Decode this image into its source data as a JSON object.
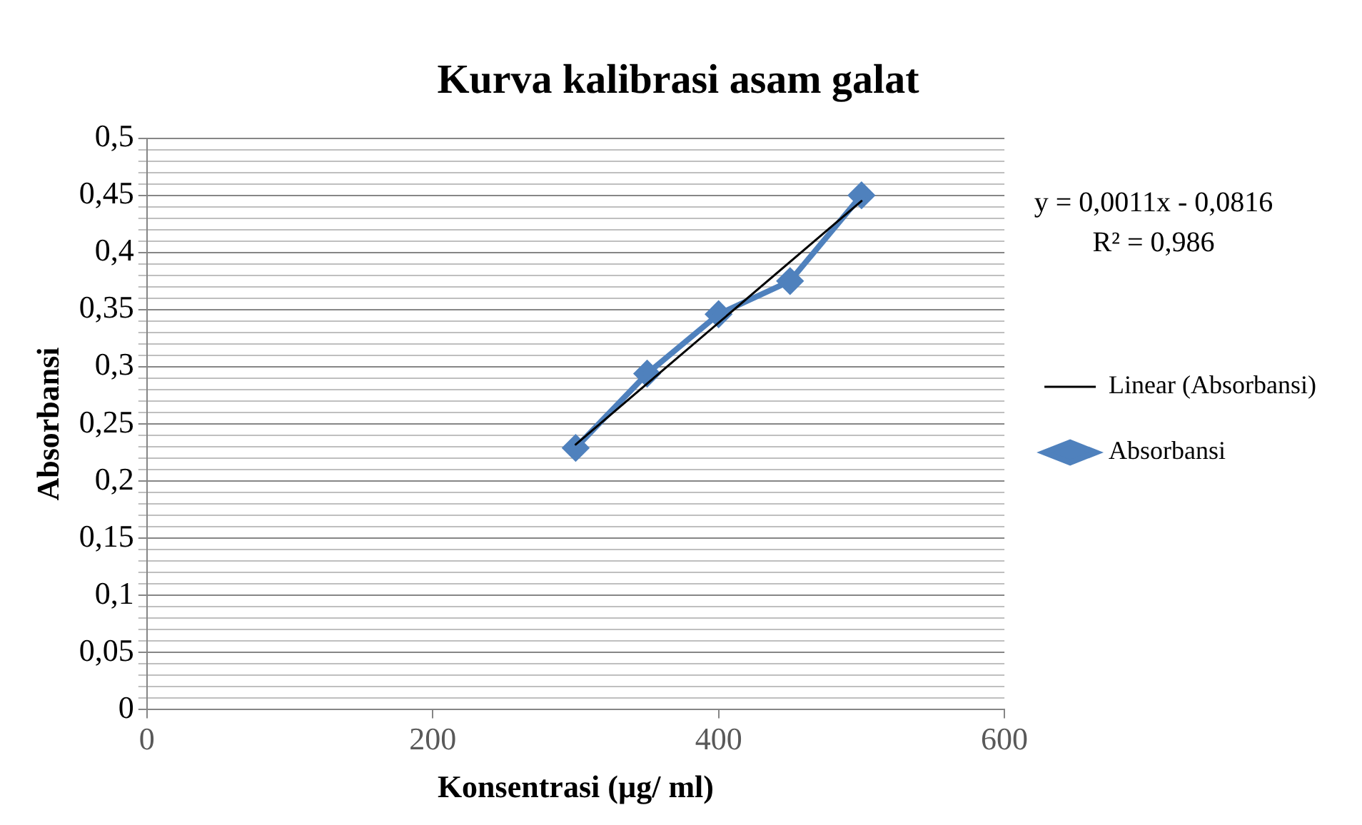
{
  "chart_data": {
    "type": "line",
    "title": "Kurva kalibrasi asam galat",
    "xlabel": "Konsentrasi (µg/ ml)",
    "ylabel": "Absorbansi",
    "annotations": [
      "y = 0,0011x - 0,0816",
      "R² = 0,986"
    ],
    "series": [
      {
        "name": "Absorbansi",
        "color": "#4f81bd",
        "x": [
          300,
          350,
          400,
          450,
          500
        ],
        "values": [
          0.229,
          0.294,
          0.346,
          0.375,
          0.45
        ],
        "marker": "diamond"
      },
      {
        "name": "Linear (Absorbansi)",
        "color": "#000000",
        "x": [
          300,
          500
        ],
        "values": [
          0.232,
          0.445
        ],
        "marker": "none"
      }
    ],
    "xlim": [
      0,
      600
    ],
    "xticks": [
      0,
      200,
      400,
      600
    ],
    "ylim": [
      0,
      0.5
    ],
    "yticks": [
      {
        "value": 0,
        "label": "0"
      },
      {
        "value": 0.01,
        "label": null
      },
      {
        "value": 0.02,
        "label": null
      },
      {
        "value": 0.03,
        "label": null
      },
      {
        "value": 0.04,
        "label": null
      },
      {
        "value": 0.05,
        "label": "0,05"
      },
      {
        "value": 0.06,
        "label": null
      },
      {
        "value": 0.07,
        "label": null
      },
      {
        "value": 0.08,
        "label": null
      },
      {
        "value": 0.09,
        "label": null
      },
      {
        "value": 0.1,
        "label": "0,1"
      },
      {
        "value": 0.11,
        "label": null
      },
      {
        "value": 0.12,
        "label": null
      },
      {
        "value": 0.13,
        "label": null
      },
      {
        "value": 0.14,
        "label": null
      },
      {
        "value": 0.15,
        "label": "0,15"
      },
      {
        "value": 0.16,
        "label": null
      },
      {
        "value": 0.17,
        "label": null
      },
      {
        "value": 0.18,
        "label": null
      },
      {
        "value": 0.19,
        "label": null
      },
      {
        "value": 0.2,
        "label": "0,2"
      },
      {
        "value": 0.21,
        "label": null
      },
      {
        "value": 0.22,
        "label": null
      },
      {
        "value": 0.23,
        "label": null
      },
      {
        "value": 0.24,
        "label": null
      },
      {
        "value": 0.25,
        "label": "0,25"
      },
      {
        "value": 0.26,
        "label": null
      },
      {
        "value": 0.27,
        "label": null
      },
      {
        "value": 0.28,
        "label": null
      },
      {
        "value": 0.29,
        "label": null
      },
      {
        "value": 0.3,
        "label": "0,3"
      },
      {
        "value": 0.31,
        "label": null
      },
      {
        "value": 0.32,
        "label": null
      },
      {
        "value": 0.33,
        "label": null
      },
      {
        "value": 0.34,
        "label": null
      },
      {
        "value": 0.35,
        "label": "0,35"
      },
      {
        "value": 0.36,
        "label": null
      },
      {
        "value": 0.37,
        "label": null
      },
      {
        "value": 0.38,
        "label": null
      },
      {
        "value": 0.39,
        "label": null
      },
      {
        "value": 0.4,
        "label": "0,4"
      },
      {
        "value": 0.41,
        "label": null
      },
      {
        "value": 0.42,
        "label": null
      },
      {
        "value": 0.43,
        "label": null
      },
      {
        "value": 0.44,
        "label": null
      },
      {
        "value": 0.45,
        "label": "0,45"
      },
      {
        "value": 0.46,
        "label": null
      },
      {
        "value": 0.47,
        "label": null
      },
      {
        "value": 0.48,
        "label": null
      },
      {
        "value": 0.49,
        "label": null
      },
      {
        "value": 0.5,
        "label": "0,5"
      }
    ],
    "grid": "y",
    "legend": "right",
    "line_style": "solid"
  }
}
